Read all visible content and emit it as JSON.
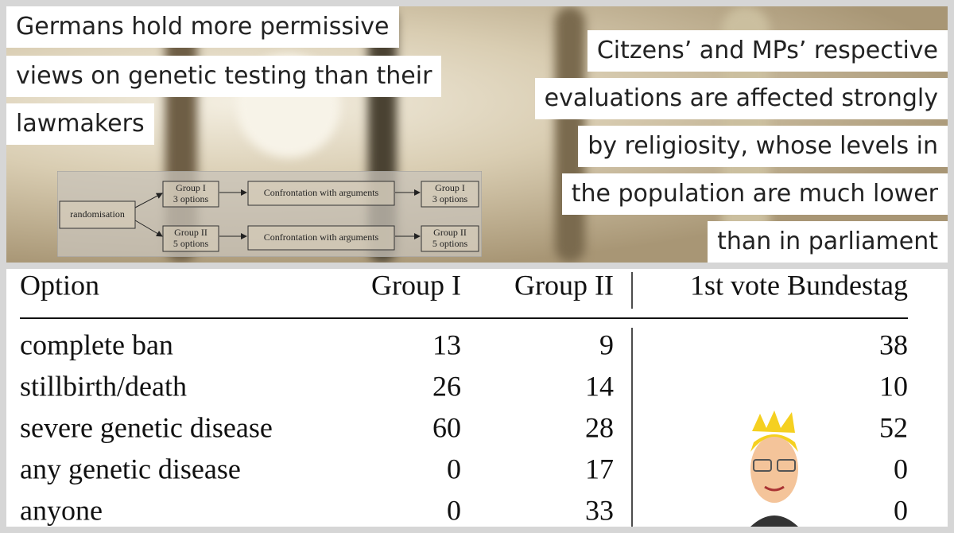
{
  "header": {
    "left_lines": [
      "Germans hold more permissive",
      "views on genetic testing than their",
      "lawmakers"
    ],
    "right_lines": [
      "Citzens’ and MPs’ respective",
      "evaluations are affected strongly",
      "by religiosity, whose levels in",
      "the population are much lower",
      "than in parliament"
    ]
  },
  "diagram": {
    "nodes": [
      {
        "label": "randomisation"
      },
      {
        "title": "Group I",
        "subtitle": "3 options"
      },
      {
        "label": "Confrontation with arguments"
      },
      {
        "title": "Group I",
        "subtitle": "3 options"
      },
      {
        "title": "Group II",
        "subtitle": "5 options"
      },
      {
        "label": "Confrontation with arguments"
      },
      {
        "title": "Group II",
        "subtitle": "5 options"
      }
    ]
  },
  "table": {
    "columns": [
      "Option",
      "Group I",
      "Group II",
      "1st vote Bundestag"
    ],
    "rows": [
      [
        "complete ban",
        13,
        9,
        38
      ],
      [
        "stillbirth/death",
        26,
        14,
        10
      ],
      [
        "severe genetic disease",
        60,
        28,
        52
      ],
      [
        "any genetic disease",
        0,
        17,
        0
      ],
      [
        "anyone",
        0,
        33,
        0
      ]
    ]
  }
}
